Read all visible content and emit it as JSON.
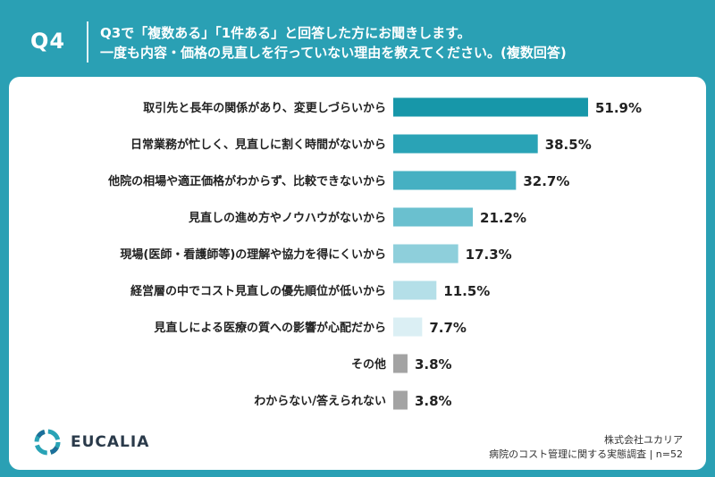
{
  "header": {
    "question_no": "Q4",
    "title_line1": "Q3で「複数ある」「1件ある」と回答した方にお聞きします。",
    "title_line2": "一度も内容・価格の見直しを行っていない理由を教えてください。(複数回答)"
  },
  "chart_data": {
    "type": "bar",
    "orientation": "horizontal",
    "categories": [
      "取引先と長年の関係があり、変更しづらいから",
      "日常業務が忙しく、見直しに割く時間がないから",
      "他院の相場や適正価格がわからず、比較できないから",
      "見直しの進め方やノウハウがないから",
      "現場(医師・看護師等)の理解や協力を得にくいから",
      "経営層の中でコスト見直しの優先順位が低いから",
      "見直しによる医療の質への影響が心配だから",
      "その他",
      "わからない/答えられない"
    ],
    "values": [
      51.9,
      38.5,
      32.7,
      21.2,
      17.3,
      11.5,
      7.7,
      3.8,
      3.8
    ],
    "value_labels": [
      "51.9%",
      "38.5%",
      "32.7%",
      "21.2%",
      "17.3%",
      "11.5%",
      "7.7%",
      "3.8%",
      "3.8%"
    ],
    "colors": [
      "#1797a9",
      "#2aa3b6",
      "#46b0c2",
      "#6ac0cf",
      "#8ecfdb",
      "#b4dfe8",
      "#dbeff4",
      "#a3a3a3",
      "#a3a3a3"
    ],
    "xlim": [
      0,
      100
    ],
    "grid": false,
    "legend": "none"
  },
  "footer": {
    "brand_name": "EUCALIA",
    "company": "株式会社ユカリア",
    "survey": "病院のコスト管理に関する実態調査 | n=52"
  }
}
